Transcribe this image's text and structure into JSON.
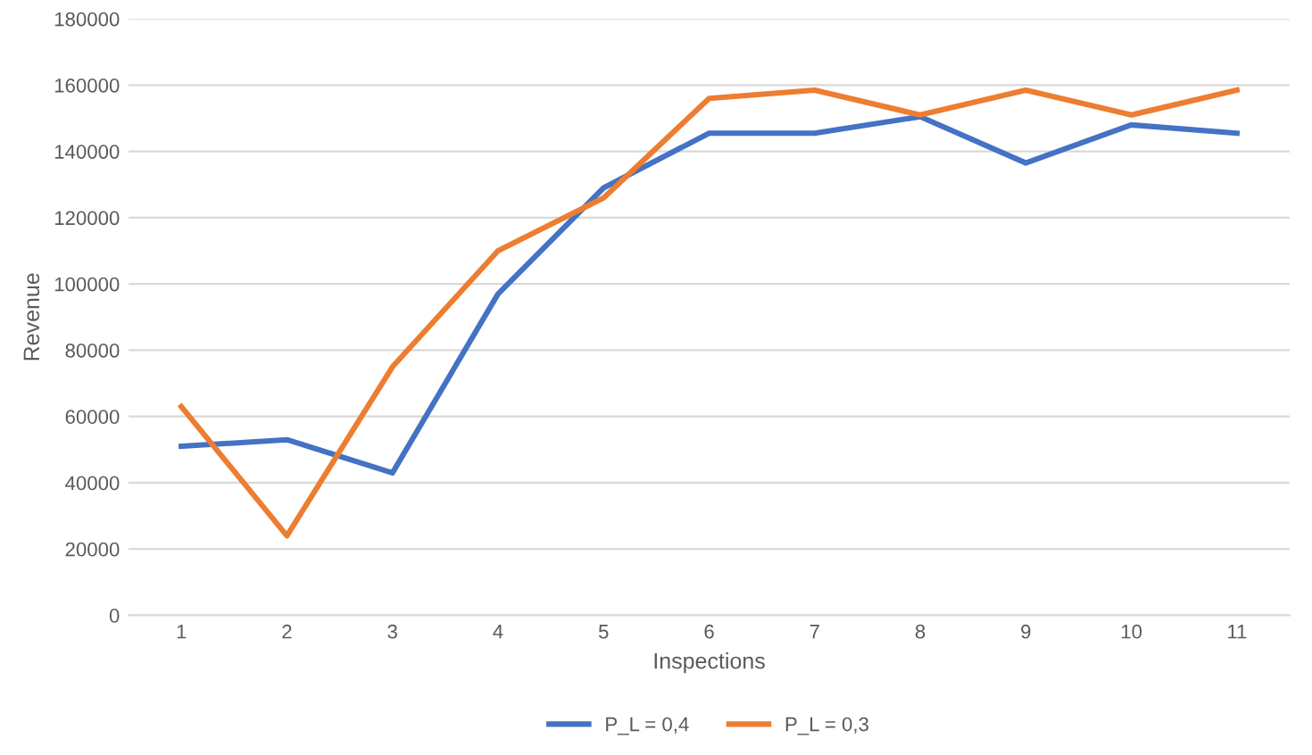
{
  "chart_data": {
    "type": "line",
    "xlabel": "Inspections",
    "ylabel": "Revenue",
    "categories": [
      "1",
      "2",
      "3",
      "4",
      "5",
      "6",
      "7",
      "8",
      "9",
      "10",
      "11"
    ],
    "series": [
      {
        "name": "P_L = 0,4",
        "color": "#4472c4",
        "values": [
          51000,
          53000,
          43000,
          97000,
          129000,
          145500,
          145500,
          150500,
          136500,
          148000,
          145500
        ]
      },
      {
        "name": "P_L = 0,3",
        "color": "#ed7d31",
        "values": [
          63000,
          24000,
          75000,
          110000,
          126000,
          156000,
          158500,
          151000,
          158500,
          151000,
          158500
        ]
      }
    ],
    "ylim": [
      0,
      180000
    ],
    "yticks": [
      0,
      20000,
      40000,
      60000,
      80000,
      100000,
      120000,
      140000,
      160000,
      180000
    ],
    "grid": "y",
    "legend": "bottom",
    "marker": "none",
    "line_style": "solid"
  }
}
